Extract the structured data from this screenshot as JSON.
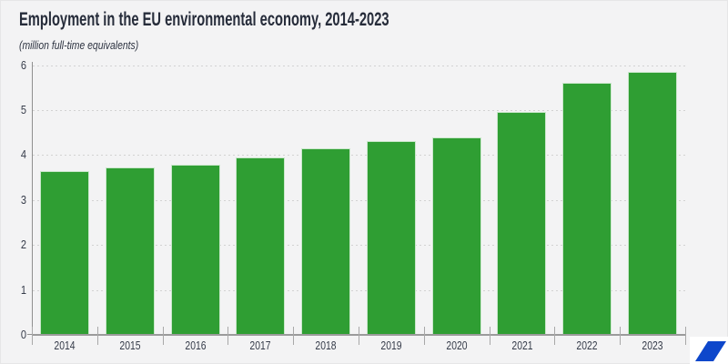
{
  "page": {
    "title": "Employment in the EU environmental economy, 2014-2023",
    "subtitle": "(million full-time equivalents)"
  },
  "chart_data": {
    "type": "bar",
    "title": "Employment in the EU environmental economy, 2014-2023",
    "subtitle": "(million full-time equivalents)",
    "categories": [
      "2014",
      "2015",
      "2016",
      "2017",
      "2018",
      "2019",
      "2020",
      "2021",
      "2022",
      "2023"
    ],
    "values": [
      3.62,
      3.7,
      3.77,
      3.92,
      4.12,
      4.3,
      4.37,
      4.93,
      5.59,
      5.83
    ],
    "xlabel": "",
    "ylabel": "",
    "ylim": [
      0,
      6
    ],
    "yticks": [
      0,
      1,
      2,
      3,
      4,
      5,
      6
    ],
    "grid": "horizontal-dotted",
    "legend": "none",
    "colors": {
      "bar": "#2f9e33",
      "background": "#f3f3f4",
      "title_text": "#262c3a",
      "axis": "#9b9b9b",
      "gridline": "#d2d2d2",
      "tick_label": "#363c4a",
      "logo_blue": "#0e47cb",
      "logo_background": "#ffffff"
    }
  },
  "branding": {
    "logo": "eurostat-parallelogram"
  }
}
